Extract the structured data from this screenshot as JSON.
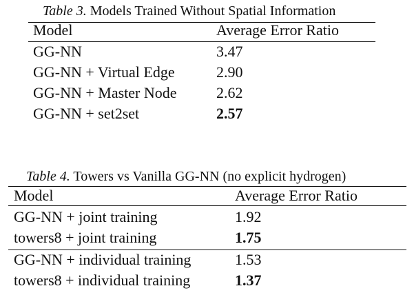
{
  "table3": {
    "caption_label": "Table 3.",
    "caption_text": "Models Trained Without Spatial Information",
    "headers": [
      "Model",
      "Average Error Ratio"
    ],
    "rows": [
      {
        "model": "GG-NN",
        "value": "3.47",
        "bold": false
      },
      {
        "model": "GG-NN + Virtual Edge",
        "value": "2.90",
        "bold": false
      },
      {
        "model": "GG-NN + Master Node",
        "value": "2.62",
        "bold": false
      },
      {
        "model": "GG-NN + set2set",
        "value": "2.57",
        "bold": true
      }
    ]
  },
  "table4": {
    "caption_label": "Table 4.",
    "caption_text": "Towers vs Vanilla GG-NN (no explicit hydrogen)",
    "headers": [
      "Model",
      "Average Error Ratio"
    ],
    "rows": [
      {
        "model": "GG-NN + joint training",
        "value": "1.92",
        "bold": false
      },
      {
        "model": "towers8 + joint training",
        "value": "1.75",
        "bold": true
      },
      {
        "model": "GG-NN + individual training",
        "value": "1.53",
        "bold": false
      },
      {
        "model": "towers8 + individual training",
        "value": "1.37",
        "bold": true
      }
    ]
  }
}
